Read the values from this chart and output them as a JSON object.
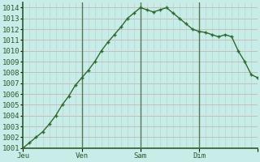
{
  "x_values": [
    0,
    1,
    2,
    3,
    4,
    5,
    6,
    7,
    8,
    9,
    10,
    11,
    12,
    13,
    14,
    15,
    16,
    17,
    18,
    19,
    20,
    21,
    22,
    23,
    24,
    25,
    26,
    27,
    28,
    29,
    30,
    31,
    32,
    33,
    34,
    35,
    36
  ],
  "y_values": [
    1001.0,
    1001.5,
    1002.0,
    1002.5,
    1003.2,
    1004.0,
    1005.0,
    1005.8,
    1006.8,
    1007.5,
    1008.2,
    1009.0,
    1010.0,
    1010.8,
    1011.5,
    1012.2,
    1013.0,
    1013.5,
    1014.0,
    1013.8,
    1013.6,
    1013.8,
    1014.0,
    1013.5,
    1013.0,
    1012.5,
    1012.0,
    1011.8,
    1011.7,
    1011.5,
    1011.3,
    1011.5,
    1011.3,
    1010.0,
    1009.0,
    1007.8,
    1007.5
  ],
  "tick_positions_x": [
    0,
    9,
    18,
    27,
    36
  ],
  "tick_labels_x": [
    "Jeu",
    "Ven",
    "Sam",
    "Dim",
    ""
  ],
  "vline_positions": [
    9,
    18,
    27
  ],
  "ylim": [
    1001.0,
    1014.5
  ],
  "yticks": [
    1001,
    1002,
    1003,
    1004,
    1005,
    1006,
    1007,
    1008,
    1009,
    1010,
    1011,
    1012,
    1013,
    1014
  ],
  "xlim": [
    0,
    36
  ],
  "line_color": "#2d6a2d",
  "marker_color": "#2d6a2d",
  "bg_color": "#c8ece8",
  "grid_color_h": "#c8a8a8",
  "grid_color_v": "#b8d4d0",
  "vline_color": "#557755",
  "spine_color": "#2d5a2d",
  "label_color": "#2d5a2d",
  "fontsize_tick": 6.5
}
